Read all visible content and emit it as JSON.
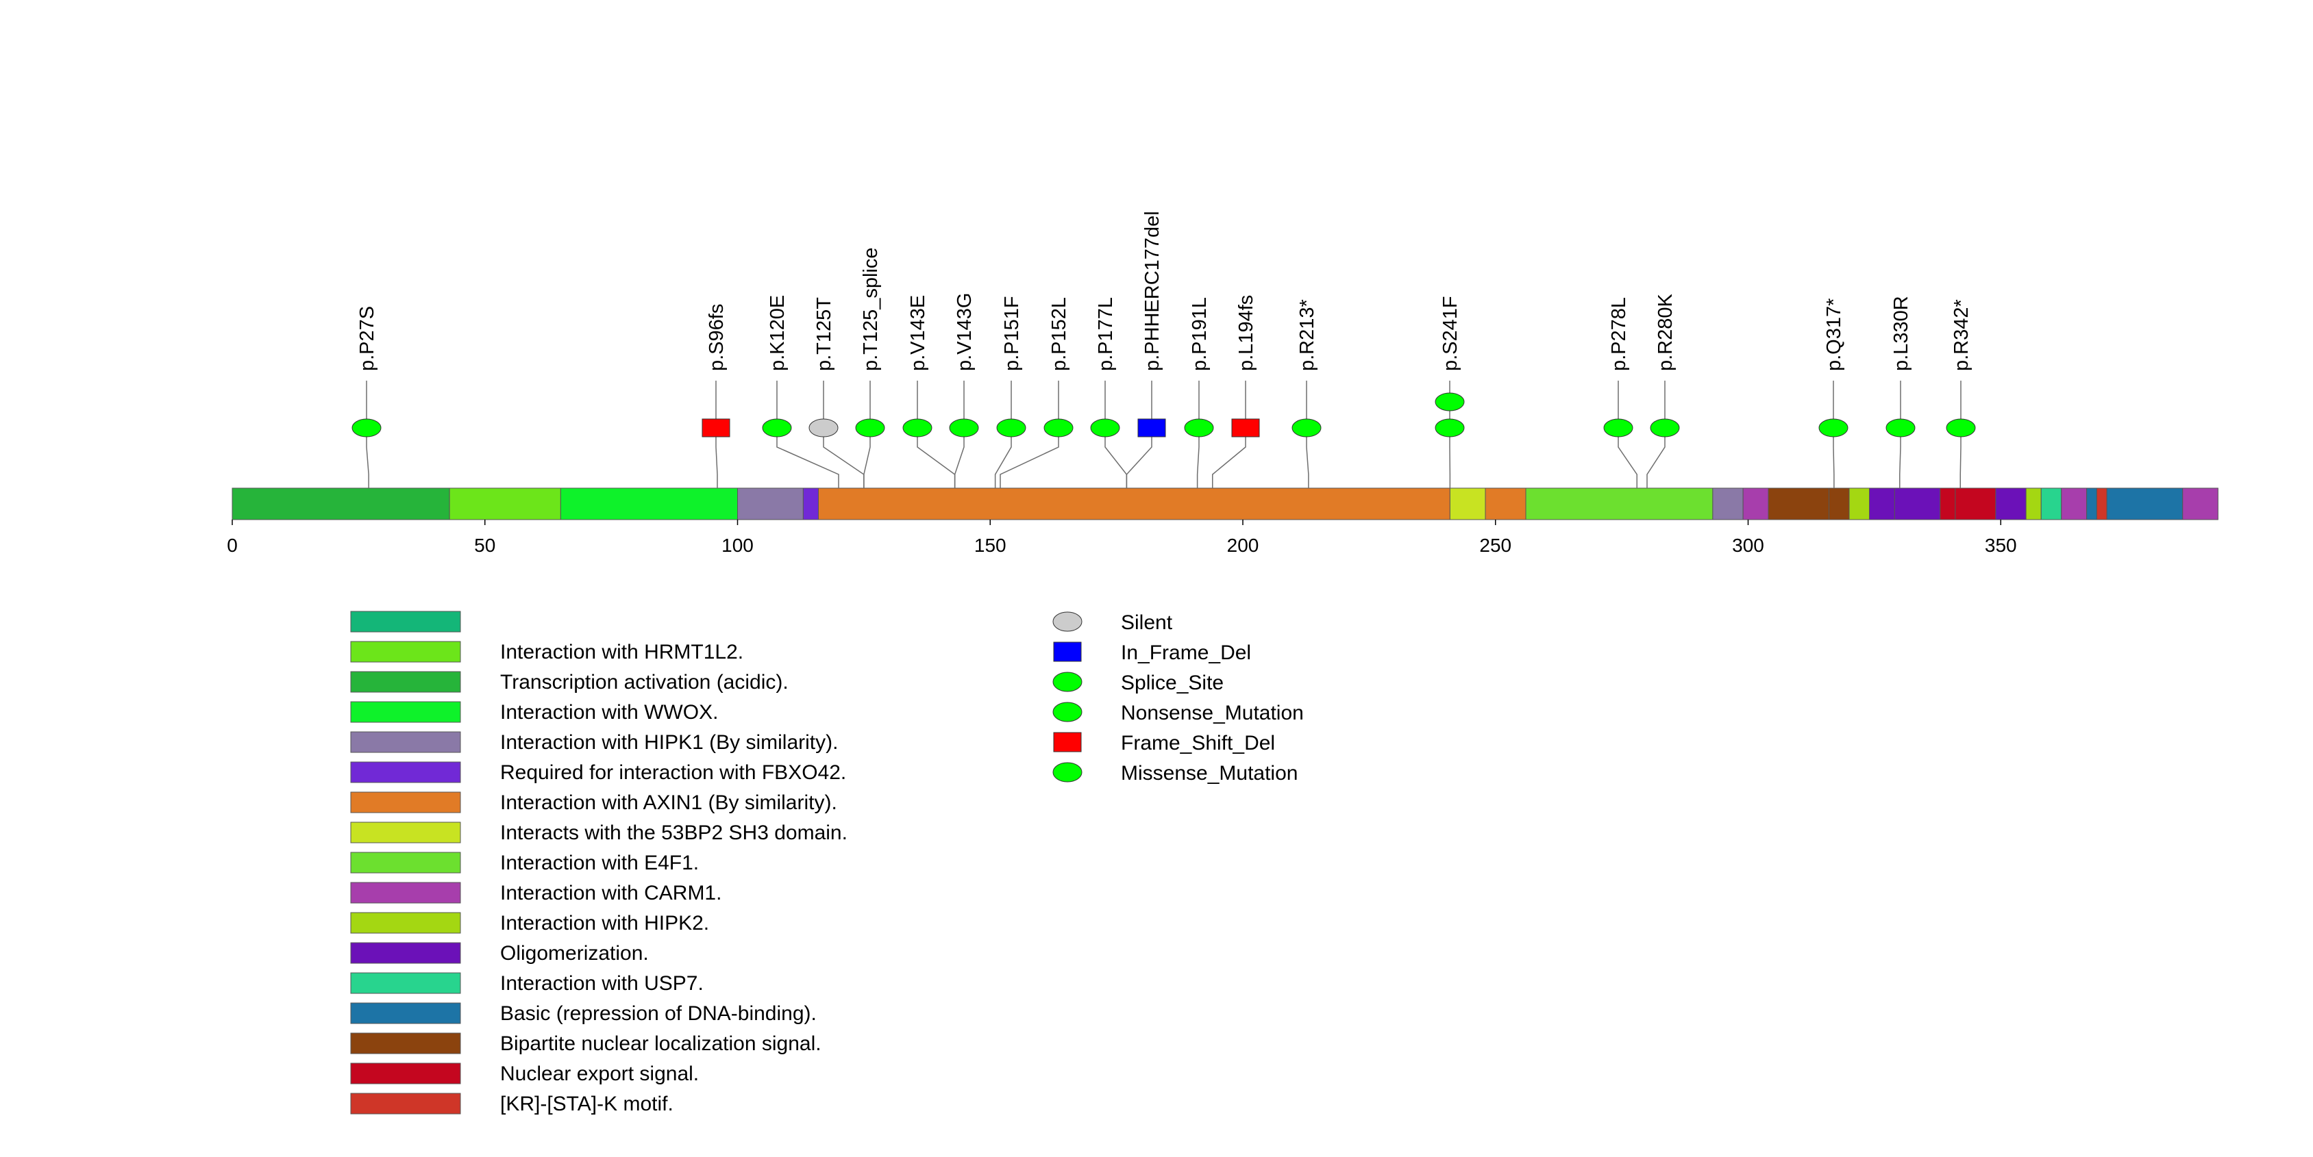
{
  "chart_data": {
    "type": "lollipop",
    "protein_length": 393,
    "x_range": [
      0,
      393
    ],
    "x_ticks": [
      "0",
      "50",
      "100",
      "150",
      "200",
      "250",
      "300",
      "350"
    ],
    "mutation_types": [
      {
        "name": "Silent",
        "shape": "ellipse",
        "color": "#cccccc"
      },
      {
        "name": "In_Frame_Del",
        "shape": "rect",
        "color": "#0000ff"
      },
      {
        "name": "Splice_Site",
        "shape": "ellipse",
        "color": "#00ff00"
      },
      {
        "name": "Nonsense_Mutation",
        "shape": "ellipse",
        "color": "#00ff00"
      },
      {
        "name": "Frame_Shift_Del",
        "shape": "rect",
        "color": "#ff0000"
      },
      {
        "name": "Missense_Mutation",
        "shape": "ellipse",
        "color": "#00ff00"
      }
    ],
    "mutations": [
      {
        "label": "p.P27S",
        "pos": 27,
        "type": "Missense_Mutation",
        "count": 1
      },
      {
        "label": "p.S96fs",
        "pos": 96,
        "type": "Frame_Shift_Del",
        "count": 1
      },
      {
        "label": "p.K120E",
        "pos": 120,
        "type": "Missense_Mutation",
        "count": 1
      },
      {
        "label": "p.T125T",
        "pos": 125,
        "type": "Silent",
        "count": 1
      },
      {
        "label": "p.T125_splice",
        "pos": 125,
        "type": "Splice_Site",
        "count": 1
      },
      {
        "label": "p.V143E",
        "pos": 143,
        "type": "Missense_Mutation",
        "count": 1
      },
      {
        "label": "p.V143G",
        "pos": 143,
        "type": "Missense_Mutation",
        "count": 1
      },
      {
        "label": "p.P151F",
        "pos": 151,
        "type": "Missense_Mutation",
        "count": 1
      },
      {
        "label": "p.P152L",
        "pos": 152,
        "type": "Missense_Mutation",
        "count": 1
      },
      {
        "label": "p.P177L",
        "pos": 177,
        "type": "Missense_Mutation",
        "count": 1
      },
      {
        "label": "p.PHHERC177del",
        "pos": 177,
        "type": "In_Frame_Del",
        "count": 1
      },
      {
        "label": "p.P191L",
        "pos": 191,
        "type": "Missense_Mutation",
        "count": 1
      },
      {
        "label": "p.L194fs",
        "pos": 194,
        "type": "Frame_Shift_Del",
        "count": 1
      },
      {
        "label": "p.R213*",
        "pos": 213,
        "type": "Nonsense_Mutation",
        "count": 1
      },
      {
        "label": "p.S241F",
        "pos": 241,
        "type": "Missense_Mutation",
        "count": 2
      },
      {
        "label": "p.P278L",
        "pos": 278,
        "type": "Missense_Mutation",
        "count": 1
      },
      {
        "label": "p.R280K",
        "pos": 280,
        "type": "Missense_Mutation",
        "count": 1
      },
      {
        "label": "p.Q317*",
        "pos": 317,
        "type": "Nonsense_Mutation",
        "count": 1
      },
      {
        "label": "p.L330R",
        "pos": 330,
        "type": "Missense_Mutation",
        "count": 1
      },
      {
        "label": "p.R342*",
        "pos": 342,
        "type": "Nonsense_Mutation",
        "count": 1
      }
    ],
    "domains": [
      {
        "start": 0,
        "end": 43,
        "color": "#26b43a"
      },
      {
        "start": 43,
        "end": 65,
        "color": "#6ce51a"
      },
      {
        "start": 65,
        "end": 100,
        "color": "#0ef22a"
      },
      {
        "start": 100,
        "end": 113,
        "color": "#8a79a7"
      },
      {
        "start": 113,
        "end": 116,
        "color": "#7129d6"
      },
      {
        "start": 116,
        "end": 241,
        "color": "#e17b26"
      },
      {
        "start": 241,
        "end": 248,
        "color": "#c8e322"
      },
      {
        "start": 248,
        "end": 256,
        "color": "#e17b26"
      },
      {
        "start": 256,
        "end": 293,
        "color": "#6ce02f"
      },
      {
        "start": 293,
        "end": 299,
        "color": "#8a79a7"
      },
      {
        "start": 299,
        "end": 304,
        "color": "#a73eac"
      },
      {
        "start": 304,
        "end": 316,
        "color": "#8b430e"
      },
      {
        "start": 316,
        "end": 320,
        "color": "#8b430e"
      },
      {
        "start": 320,
        "end": 324,
        "color": "#a4d712"
      },
      {
        "start": 324,
        "end": 329,
        "color": "#6b11b8"
      },
      {
        "start": 329,
        "end": 338,
        "color": "#6b11b8"
      },
      {
        "start": 338,
        "end": 341,
        "color": "#c4061f"
      },
      {
        "start": 341,
        "end": 349,
        "color": "#c4061f"
      },
      {
        "start": 349,
        "end": 355,
        "color": "#6b11b8"
      },
      {
        "start": 355,
        "end": 358,
        "color": "#a4d712"
      },
      {
        "start": 358,
        "end": 362,
        "color": "#28d48e"
      },
      {
        "start": 362,
        "end": 367,
        "color": "#a73eac"
      },
      {
        "start": 367,
        "end": 369,
        "color": "#1d74a6"
      },
      {
        "start": 369,
        "end": 371,
        "color": "#cf3628"
      },
      {
        "start": 371,
        "end": 386,
        "color": "#1d74a6"
      },
      {
        "start": 386,
        "end": 393,
        "color": "#a73eac"
      }
    ],
    "domain_legend": [
      {
        "color": "#14b678",
        "label": ""
      },
      {
        "color": "#6ce51a",
        "label": "Interaction with HRMT1L2."
      },
      {
        "color": "#26b43a",
        "label": "Transcription activation (acidic)."
      },
      {
        "color": "#0ef22a",
        "label": "Interaction with WWOX."
      },
      {
        "color": "#8a79a7",
        "label": "Interaction with HIPK1 (By similarity)."
      },
      {
        "color": "#7129d6",
        "label": "Required for interaction with FBXO42."
      },
      {
        "color": "#e17b26",
        "label": "Interaction with AXIN1 (By similarity)."
      },
      {
        "color": "#c8e322",
        "label": "Interacts with the 53BP2 SH3 domain."
      },
      {
        "color": "#6ce02f",
        "label": "Interaction with E4F1."
      },
      {
        "color": "#a73eac",
        "label": "Interaction with CARM1."
      },
      {
        "color": "#a4d712",
        "label": "Interaction with HIPK2."
      },
      {
        "color": "#6b11b8",
        "label": "Oligomerization."
      },
      {
        "color": "#28d48e",
        "label": "Interaction with USP7."
      },
      {
        "color": "#1d74a6",
        "label": "Basic (repression of DNA-binding)."
      },
      {
        "color": "#8b430e",
        "label": "Bipartite nuclear localization signal."
      },
      {
        "color": "#c4061f",
        "label": "Nuclear export signal."
      },
      {
        "color": "#cf3628",
        "label": "[KR]-[STA]-K motif."
      }
    ]
  }
}
